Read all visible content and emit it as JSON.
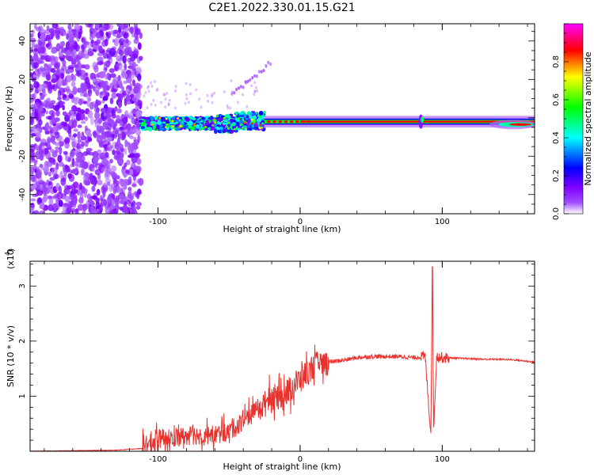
{
  "title": "C2E1.2022.330.01.15.G21",
  "chart_data": [
    {
      "type": "heatmap",
      "title": "C2E1.2022.330.01.15.G21",
      "xlabel": "Height of straight line (km)",
      "ylabel": "Frequency (Hz)",
      "xlim": [
        -190,
        165
      ],
      "ylim": [
        -50,
        49
      ],
      "x_ticks": [
        -100,
        0,
        100
      ],
      "x_tick_labels": [
        "-100",
        "0",
        "100"
      ],
      "y_ticks": [
        -40,
        -20,
        0,
        20,
        40
      ],
      "y_tick_labels": [
        "-40",
        "-20",
        "0",
        "20",
        "40"
      ],
      "colorbar": {
        "label": "Normalized spectral amplitude",
        "range": [
          0,
          1
        ],
        "ticks": [
          0.0,
          0.2,
          0.4,
          0.6,
          0.8
        ],
        "tick_labels": [
          "0.0",
          "0.2",
          "0.4",
          "0.6",
          "0.8"
        ],
        "colormap": [
          "#ffffff",
          "#7f00ff",
          "#0000ff",
          "#00ffff",
          "#00ff00",
          "#ffff00",
          "#ff0000",
          "#ff00ff"
        ]
      },
      "description_regions": [
        {
          "x_range": [
            -190,
            -112
          ],
          "freq_range": [
            -50,
            49
          ],
          "amplitude": 0.15,
          "pattern": "noise"
        },
        {
          "x_range": [
            -112,
            -25
          ],
          "freq_center": -3,
          "amplitude": 0.55,
          "pattern": "blobs"
        },
        {
          "x_range": [
            -25,
            165
          ],
          "freq_center": -2,
          "amplitude": 0.95,
          "pattern": "line"
        }
      ]
    },
    {
      "type": "line",
      "xlabel": "Height of straight line (km)",
      "ylabel": "SNR (10 * v/v)",
      "y_scale_note": "(x10",
      "y_scale_exp": "4",
      "xlim": [
        -190,
        165
      ],
      "ylim": [
        0,
        3.45
      ],
      "x_ticks": [
        -100,
        0,
        100
      ],
      "x_tick_labels": [
        "-100",
        "0",
        "100"
      ],
      "y_ticks": [
        1,
        2,
        3
      ],
      "y_tick_labels": [
        "1",
        "2",
        "3"
      ],
      "color": "#e8322e",
      "series": [
        {
          "x": [
            -190,
            -160,
            -130,
            -111,
            -100,
            -90,
            -80,
            -70,
            -60,
            -50,
            -40,
            -30,
            -20,
            -10,
            0,
            10,
            20,
            30,
            40,
            50,
            60,
            70,
            80,
            88,
            92,
            93,
            94,
            96,
            100,
            110,
            120,
            130,
            140,
            150,
            165
          ],
          "y": [
            0.0,
            0.01,
            0.02,
            0.05,
            0.22,
            0.25,
            0.28,
            0.3,
            0.3,
            0.35,
            0.55,
            0.75,
            0.95,
            1.08,
            1.3,
            1.55,
            1.62,
            1.65,
            1.7,
            1.72,
            1.72,
            1.72,
            1.7,
            1.72,
            0.3,
            3.35,
            0.4,
            1.72,
            1.7,
            1.69,
            1.68,
            1.67,
            1.67,
            1.66,
            1.62
          ]
        }
      ]
    }
  ]
}
